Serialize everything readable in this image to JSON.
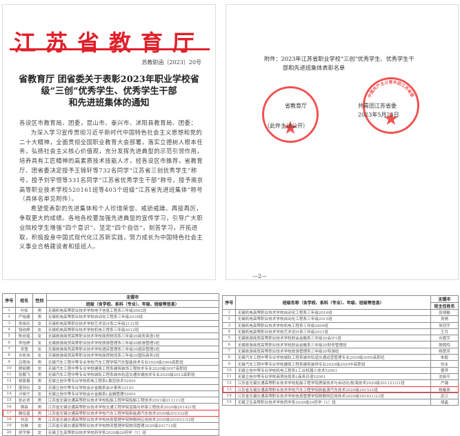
{
  "notice": {
    "header": "江苏省教育厅",
    "doc_number": "苏教职函〔2023〕20号",
    "title_lines": [
      "省教育厅 团省委关于表彰2023年职业学校省",
      "级“三创”优秀学生、优秀学生干部",
      "和先进班集体的通知"
    ],
    "salutation": "各设区市教育局、团委，昆山市、泰兴市、沭阳县教育局、团委：",
    "paragraph1": "为深入学习宣传贯彻习近平新时代中国特色社会主义思想和党的二十大精神，全面贯彻全国职业教育大会部署，落实立德树人根本任务，弘扬社会主义核心价值观，充分发挥先进典型的示范引领作用，培养具有工匠精神的高素质技术技能人才，经各设区市推荐，省教育厅、团省委决定授予王锦轩等732名同学“江苏省三创优秀学生”称号，授予刘宇恒等331名同学“江苏省优秀学生干部”称号，授予南京高等职业技术学校520161班等403个班级“江苏省先进班集体”称号（具体名单见附件）。",
    "paragraph2": "希望受表彰的先进集体和个人珍惜荣誉、戒骄戒躁、再接再厉，争取更大的成绩。各地各校要加强先进典型的宣传学习，引导广大职业院校学生增强“四个意识”、坚定“四个自信”，刻苦学习，开拓进取，积极投身中国式现代化江苏新实践，努力成长为中国特色社会主义事业合格建设者和接班人。"
  },
  "attachment": {
    "line1": "附件：2023年江苏省职业学校“三创”优秀学生、优秀学生干",
    "line2": "部和先进班集体表彰名单",
    "signer1": "省教育厅",
    "signer2": "共青团江苏省委",
    "date": "2023年5月23日",
    "disclosure": "（此件主动公开）",
    "seal1_text": "江苏省教育厅",
    "seal2_text": "中国共产主义青年团江苏省委员会",
    "page_number": "—2—"
  },
  "student_table": {
    "region": "无锡市",
    "headers": [
      "序号",
      "姓名",
      "性别",
      "班级（含学校、系科（专业）、年级、班级等信息）"
    ],
    "rows": [
      [
        "1",
        "叶松",
        "男",
        "无锡机电高等职业技术学校电子信息工程系三年级2002班"
      ],
      [
        "2",
        "严裕建",
        "男",
        "无锡机电高等职业技术学校自动化工程系三年级2018班"
      ],
      [
        "3",
        "吴晓玲",
        "女",
        "无锡机电高等职业技术学校艺术设计系二年级2121班"
      ],
      [
        "4",
        "钱欣婷",
        "女",
        "无锡机电高等职业技术学校机电工程系三年级2012班"
      ],
      [
        "5",
        "陈欣瑶",
        "女",
        "无锡旅游商贸高等职业技术学校商贸物流系三年级20商务英语1班"
      ],
      [
        "6",
        "李怡婷",
        "女",
        "无锡旅游商贸高等职业技术学校旅游管理系三年级20旅游管理3班"
      ],
      [
        "7",
        "宋雪",
        "女",
        "无锡旅游商贸高等职业技术学校酒店管理系三年级20酒店管理2班"
      ],
      [
        "8",
        "许凯伟",
        "女",
        "无锡旅游商贸高等职业技术学校商贸物流系三年级20国际商务2班"
      ],
      [
        "9",
        "吕艳伟",
        "男",
        "无锡汽车工程中等专业学校汽车工程学院汽车智能技术专业2020级2004高职班"
      ],
      [
        "10",
        "顾丽娜",
        "女",
        "无锡汽车工程中等专业学校建筑工程系建筑装饰工程技术专业2020级2007高职班"
      ],
      [
        "11",
        "张鹏飞",
        "男",
        "无锡汽车工程中等专业学校城轨工程系城市轨道交通车辆技术专业2020级2012高职班"
      ],
      [
        "12",
        "郝家春",
        "男",
        "无锡立信中等专业学校机电工程系L数控技术52001"
      ],
      [
        "13",
        "盛则仪",
        "女",
        "无锡立信中等专业学校会计金融系会计事务32103"
      ],
      [
        "14",
        "沙晓宁",
        "女",
        "无锡立信中等专业学校会计金融系L金融管理52001"
      ],
      [
        "15",
        "张必求",
        "男",
        "江苏省无锡交通高等职业技术学校船舶工程学院船舶工程技术2021级211111班"
      ],
      [
        "16",
        "顾森",
        "男",
        "江苏省无锡交通高等职业技术学校交通工程学院道路与桥梁工程技术2020级201421班"
      ],
      [
        "17",
        "滕佳鑫",
        "男",
        "江苏省无锡交通高等职业技术学校汽车工程学院新能源汽车技术2020级201532班"
      ],
      [
        "18",
        "刘浩",
        "男",
        "江苏省无锡交通高等职业技术学校信息管理学院物联网应用技术2020级201621/22班"
      ],
      [
        "19",
        "刘琳",
        "女",
        "江苏省无锡交通高等职业技术学校物流管理学院物流管理2020级201712班"
      ],
      [
        "20",
        "吴宇婷",
        "女",
        "无锡卫生高等职业技术学校药学系2020级20药学（1）班"
      ]
    ],
    "highlighted_row": 17
  },
  "class_table": {
    "region": "无锡市",
    "headers": [
      "序号",
      "班级名称（含学校、系科（专业）、年级、班级等信息）",
      "班主任姓名"
    ],
    "rows": [
      [
        "1",
        "无锡机电高等职业技术学校自动化工程系三年级2016班",
        "张翊敏"
      ],
      [
        "2",
        "无锡机电高等职业技术学校自动化工程系三年级2015班",
        "吴倩"
      ],
      [
        "3",
        "无锡机电高等职业技术学校机电工程系三年级2009班",
        "吴冠宇"
      ],
      [
        "4",
        "无锡机电高等职业技术学校艺术设计系三年级2021班",
        "王月"
      ],
      [
        "5",
        "无锡旅游商贸高等职业技术学校财会金融系三年级20会计1班",
        "许霞宇"
      ],
      [
        "6",
        "无锡旅游商贸高等职业技术学校财会金融系三年级20财务管理班",
        "殷霞鸣"
      ],
      [
        "7",
        "无锡旅游商贸高等职业技术学校旅游管理系三年级20导游班",
        "杨慧芳"
      ],
      [
        "8",
        "无锡汽车工程中等专业学校城轨工程系城市轨道交通运营管理专业2020级2009高职班",
        "朱毅"
      ],
      [
        "9",
        "无锡汽车工程中等专业学校建筑工程系建筑装饰专业2020级2020中高职班",
        "刘永"
      ],
      [
        "10",
        "无锡立信中等专业学校机电工程系L工业机器人技术52001",
        "曹萍"
      ],
      [
        "11",
        "无锡立信中等专业学校商贸信息系L商务日语52001",
        "沈晓平"
      ],
      [
        "12",
        "江苏省无锡交通高等职业技术学校船舶工程学院焊接技术与自动化/航海技术2020级201121/31班",
        "严璐"
      ],
      [
        "13",
        "江苏省无锡交通高等职业技术学校汽车工程学院新能源汽车技术2020级201532班",
        "杨春英"
      ],
      [
        "14",
        "江苏省无锡交通高等职业技术学校信息管理学院物联网应用技术2020级201621/22班",
        "武江"
      ],
      [
        "15",
        "无锡卫生高等职业技术学校药学系2020级20药学（1）班",
        "胡晶"
      ]
    ],
    "highlighted_row": 13
  },
  "colors": {
    "red": "#e0202a",
    "highlight": "#e33"
  }
}
